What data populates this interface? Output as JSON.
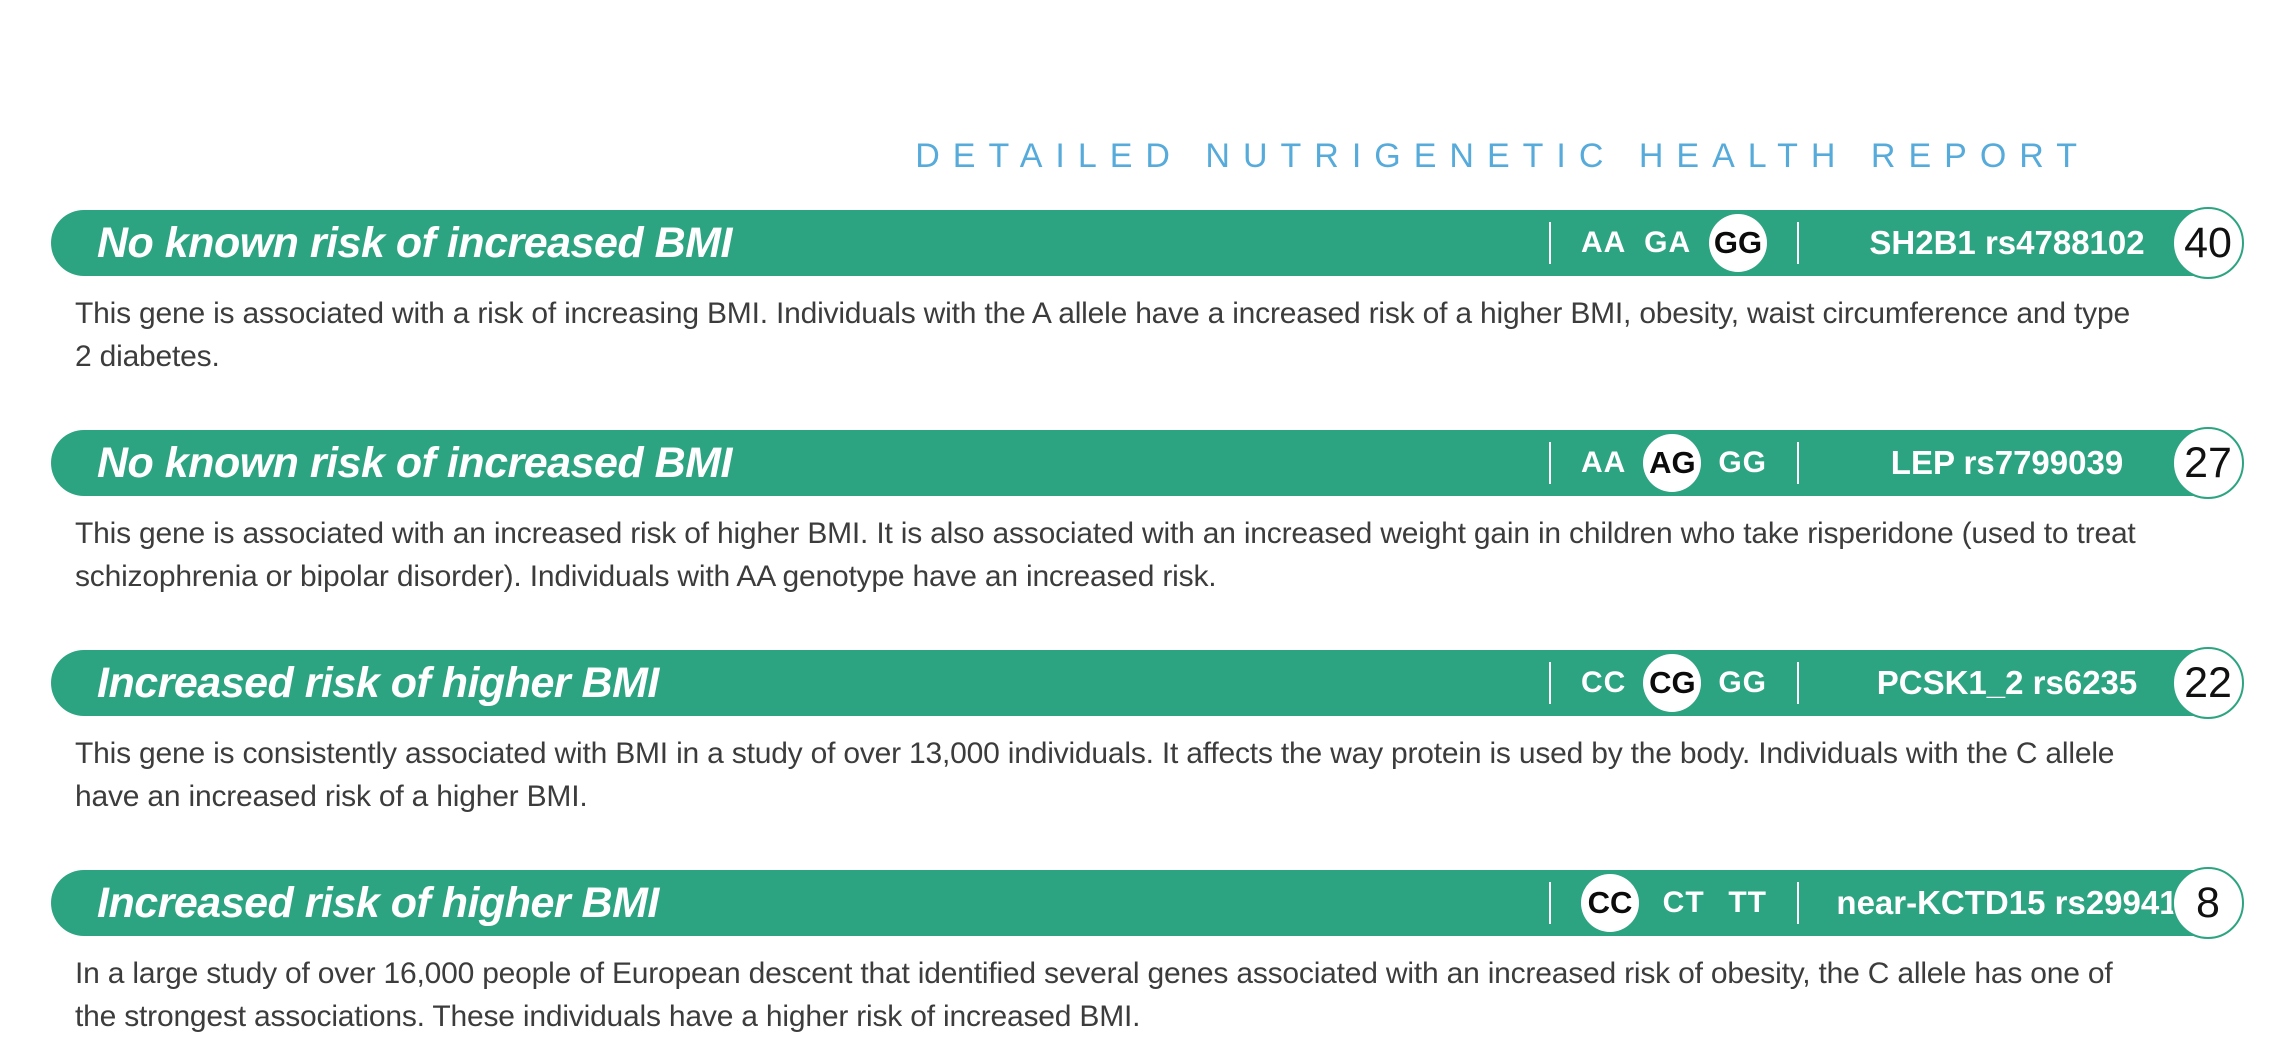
{
  "header": {
    "title": "DETAILED NUTRIGENETIC HEALTH REPORT"
  },
  "colors": {
    "banner_green": "#2DA481",
    "header_blue": "#57ABDB",
    "body_text": "#3C3C3C",
    "banner_text": "#FFFFFF",
    "badge_text": "#111111"
  },
  "entries": [
    {
      "title": "No known risk of increased BMI",
      "genotypes": [
        "AA",
        "GA",
        "GG"
      ],
      "selected_genotype": "GG",
      "gene": "SH2B1 rs4788102",
      "page_number": "40",
      "description": "This gene is associated with a risk of increasing BMI. Individuals with the A allele have a increased risk of a higher BMI, obesity, waist circumference and type 2 diabetes."
    },
    {
      "title": "No known risk of increased BMI",
      "genotypes": [
        "AA",
        "AG",
        "GG"
      ],
      "selected_genotype": "AG",
      "gene": "LEP rs7799039",
      "page_number": "27",
      "description": "This gene is associated with an increased risk of higher BMI. It is also associated with an increased weight gain in children who take risperidone (used to treat schizophrenia or bipolar disorder). Individuals with AA genotype have an increased risk."
    },
    {
      "title": "Increased risk of higher BMI",
      "genotypes": [
        "CC",
        "CG",
        "GG"
      ],
      "selected_genotype": "CG",
      "gene": "PCSK1_2 rs6235",
      "page_number": "22",
      "description": "This gene is consistently associated with BMI in a study of over 13,000 individuals. It affects the way protein is used by the body. Individuals with the C allele have an increased risk of a higher BMI."
    },
    {
      "title": "Increased risk of higher BMI",
      "genotypes": [
        "CC",
        "CT",
        "TT"
      ],
      "selected_genotype": "CC",
      "gene": "near-KCTD15 rs29941",
      "page_number": "8",
      "description": "In a large study of over 16,000 people of European descent that identified several genes associated with an increased risk of obesity, the C allele has one of the strongest associations. These individuals have a higher risk of increased BMI."
    }
  ]
}
